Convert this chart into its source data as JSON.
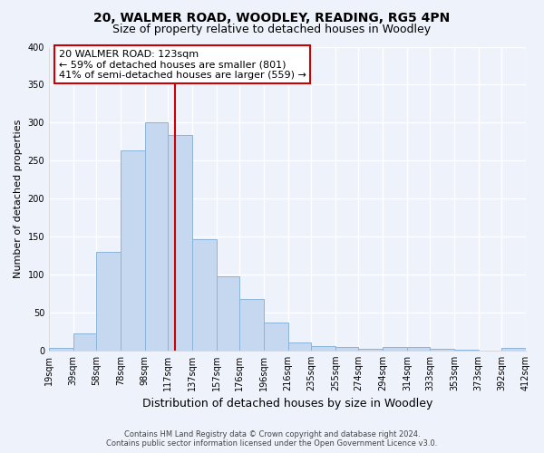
{
  "title": "20, WALMER ROAD, WOODLEY, READING, RG5 4PN",
  "subtitle": "Size of property relative to detached houses in Woodley",
  "xlabel": "Distribution of detached houses by size in Woodley",
  "ylabel": "Number of detached properties",
  "bin_labels": [
    "19sqm",
    "39sqm",
    "58sqm",
    "78sqm",
    "98sqm",
    "117sqm",
    "137sqm",
    "157sqm",
    "176sqm",
    "196sqm",
    "216sqm",
    "235sqm",
    "255sqm",
    "274sqm",
    "294sqm",
    "314sqm",
    "333sqm",
    "353sqm",
    "373sqm",
    "392sqm",
    "412sqm"
  ],
  "bar_values": [
    3,
    22,
    130,
    263,
    300,
    284,
    147,
    98,
    68,
    37,
    10,
    6,
    5,
    2,
    4,
    4,
    2,
    1,
    0,
    3
  ],
  "bin_edges": [
    19,
    39,
    58,
    78,
    98,
    117,
    137,
    157,
    176,
    196,
    216,
    235,
    255,
    274,
    294,
    314,
    333,
    353,
    373,
    392,
    412
  ],
  "bar_color": "#c5d8f0",
  "bar_edgecolor": "#8ab4d8",
  "vline_x": 123,
  "vline_color": "#cc0000",
  "ylim": [
    0,
    400
  ],
  "yticks": [
    0,
    50,
    100,
    150,
    200,
    250,
    300,
    350,
    400
  ],
  "annotation_title": "20 WALMER ROAD: 123sqm",
  "annotation_line1": "← 59% of detached houses are smaller (801)",
  "annotation_line2": "41% of semi-detached houses are larger (559) →",
  "annotation_box_color": "#ffffff",
  "annotation_border_color": "#cc0000",
  "footer_line1": "Contains HM Land Registry data © Crown copyright and database right 2024.",
  "footer_line2": "Contains public sector information licensed under the Open Government Licence v3.0.",
  "bg_color": "#eef2fb",
  "plot_bg_color": "#eef2fb",
  "grid_color": "#ffffff",
  "title_fontsize": 10,
  "subtitle_fontsize": 9,
  "ylabel_fontsize": 8,
  "xlabel_fontsize": 9,
  "tick_fontsize": 7,
  "annot_fontsize": 8
}
